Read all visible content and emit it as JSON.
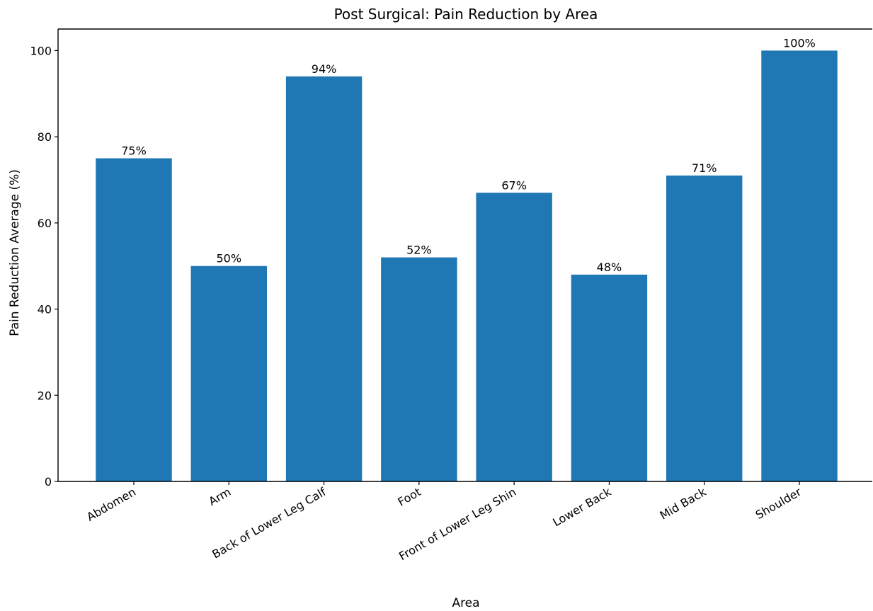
{
  "chart_data": {
    "type": "bar",
    "title": "Post Surgical: Pain Reduction by Area",
    "xlabel": "Area",
    "ylabel": "Pain Reduction Average (%)",
    "categories": [
      "Abdomen",
      "Arm",
      "Back of Lower Leg Calf",
      "Foot",
      "Front of Lower Leg Shin",
      "Lower Back",
      "Mid Back",
      "Shoulder"
    ],
    "values": [
      75,
      50,
      94,
      52,
      67,
      48,
      71,
      100
    ],
    "data_labels": [
      "75%",
      "50%",
      "94%",
      "52%",
      "67%",
      "48%",
      "71%",
      "100%"
    ],
    "ylim": [
      0,
      105
    ],
    "yticks": [
      0,
      20,
      40,
      60,
      80,
      100
    ],
    "bar_color": "#1f77b4",
    "grid": false,
    "legend": "none"
  }
}
